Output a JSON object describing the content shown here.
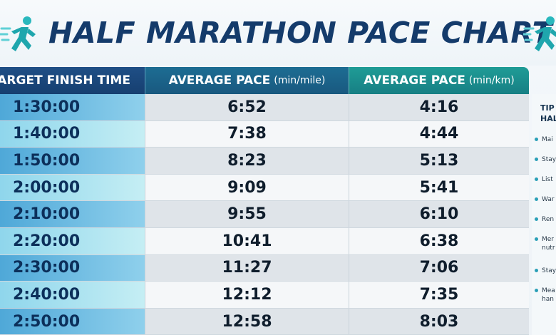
{
  "title": "HALF MARATHON PACE CHART",
  "icons": {
    "left": "running-person-icon",
    "right": "running-person-icon"
  },
  "colors": {
    "title": "#143b6b",
    "header_col1": "#1f4f86",
    "header_col2": "#1d6d93",
    "header_col3": "#1f9c96",
    "accent_cyan": "#4fa8d8"
  },
  "table": {
    "headers": [
      {
        "label": "TARGET FINISH TIME",
        "unit": ""
      },
      {
        "label": "AVERAGE PACE",
        "unit": "(min/mile)"
      },
      {
        "label": "AVERAGE PACE",
        "unit": "(min/km)"
      }
    ],
    "rows": [
      {
        "finish": "1:30:00",
        "mile": "6:52",
        "km": "4:16"
      },
      {
        "finish": "1:40:00",
        "mile": "7:38",
        "km": "4:44"
      },
      {
        "finish": "1:50:00",
        "mile": "8:23",
        "km": "5:13"
      },
      {
        "finish": "2:00:00",
        "mile": "9:09",
        "km": "5:41"
      },
      {
        "finish": "2:10:00",
        "mile": "9:55",
        "km": "6:10"
      },
      {
        "finish": "2:20:00",
        "mile": "10:41",
        "km": "6:38"
      },
      {
        "finish": "2:30:00",
        "mile": "11:27",
        "km": "7:06"
      },
      {
        "finish": "2:40:00",
        "mile": "12:12",
        "km": "7:35"
      },
      {
        "finish": "2:50:00",
        "mile": "12:58",
        "km": "8:03"
      }
    ]
  },
  "tips": {
    "title_line1": "TIP",
    "title_line2": "HAL",
    "items": [
      {
        "text": "Mai",
        "sub": ""
      },
      {
        "text": "Stay",
        "sub": ""
      },
      {
        "text": "List",
        "sub": ""
      },
      {
        "text": "War",
        "sub": ""
      },
      {
        "text": "Ren",
        "sub": ""
      },
      {
        "text": "Mer",
        "sub": "nutr"
      },
      {
        "text": "Stay",
        "sub": ""
      },
      {
        "text": "Mea",
        "sub": "han"
      }
    ]
  }
}
